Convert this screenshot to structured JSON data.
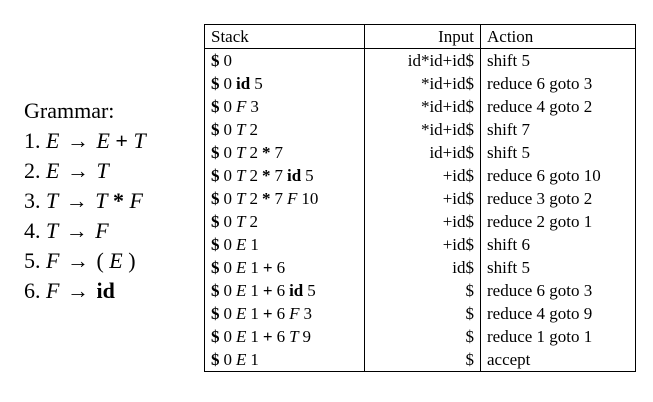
{
  "grammar": {
    "title": "Grammar:",
    "rules": [
      {
        "num": "1.",
        "parts": [
          [
            "it",
            "E"
          ],
          [
            "arrow",
            "→"
          ],
          [
            "it",
            "E"
          ],
          [
            "b",
            "+"
          ],
          [
            "it",
            "T"
          ]
        ]
      },
      {
        "num": "2.",
        "parts": [
          [
            "it",
            "E"
          ],
          [
            "arrow",
            "→"
          ],
          [
            "it",
            "T"
          ]
        ]
      },
      {
        "num": "3.",
        "parts": [
          [
            "it",
            "T"
          ],
          [
            "arrow",
            "→"
          ],
          [
            "it",
            "T"
          ],
          [
            "b",
            "*"
          ],
          [
            "it",
            "F"
          ]
        ]
      },
      {
        "num": "4.",
        "parts": [
          [
            "it",
            "T"
          ],
          [
            "arrow",
            "→"
          ],
          [
            "it",
            "F"
          ]
        ]
      },
      {
        "num": "5.",
        "parts": [
          [
            "it",
            "F"
          ],
          [
            "arrow",
            "→"
          ],
          [
            "t",
            "("
          ],
          [
            "it",
            "E"
          ],
          [
            "t",
            ")"
          ]
        ]
      },
      {
        "num": "6.",
        "parts": [
          [
            "it",
            "F"
          ],
          [
            "arrow",
            "→"
          ],
          [
            "b",
            "id"
          ]
        ]
      }
    ]
  },
  "table": {
    "headers": {
      "stack": "Stack",
      "input": "Input",
      "action": "Action"
    },
    "rows": [
      {
        "stack": [
          [
            "b",
            "$"
          ],
          [
            "t",
            "0"
          ]
        ],
        "input": "id*id+id$",
        "action": "shift 5"
      },
      {
        "stack": [
          [
            "b",
            "$"
          ],
          [
            "t",
            "0"
          ],
          [
            "b",
            "id"
          ],
          [
            "t",
            "5"
          ]
        ],
        "input": "*id+id$",
        "action": "reduce 6 goto 3"
      },
      {
        "stack": [
          [
            "b",
            "$"
          ],
          [
            "t",
            "0"
          ],
          [
            "it",
            "F"
          ],
          [
            "t",
            "3"
          ]
        ],
        "input": "*id+id$",
        "action": "reduce 4 goto 2"
      },
      {
        "stack": [
          [
            "b",
            "$"
          ],
          [
            "t",
            "0"
          ],
          [
            "it",
            "T"
          ],
          [
            "t",
            "2"
          ]
        ],
        "input": "*id+id$",
        "action": "shift 7"
      },
      {
        "stack": [
          [
            "b",
            "$"
          ],
          [
            "t",
            "0"
          ],
          [
            "it",
            "T"
          ],
          [
            "t",
            "2"
          ],
          [
            "b",
            "*"
          ],
          [
            "t",
            "7"
          ]
        ],
        "input": "id+id$",
        "action": "shift 5"
      },
      {
        "stack": [
          [
            "b",
            "$"
          ],
          [
            "t",
            "0"
          ],
          [
            "it",
            "T"
          ],
          [
            "t",
            "2"
          ],
          [
            "b",
            "*"
          ],
          [
            "t",
            "7"
          ],
          [
            "b",
            "id"
          ],
          [
            "t",
            "5"
          ]
        ],
        "input": "+id$",
        "action": "reduce 6 goto 10"
      },
      {
        "stack": [
          [
            "b",
            "$"
          ],
          [
            "t",
            "0"
          ],
          [
            "it",
            "T"
          ],
          [
            "t",
            "2"
          ],
          [
            "b",
            "*"
          ],
          [
            "t",
            "7"
          ],
          [
            "it",
            "F"
          ],
          [
            "t",
            "10"
          ]
        ],
        "input": "+id$",
        "action": "reduce 3 goto 2"
      },
      {
        "stack": [
          [
            "b",
            "$"
          ],
          [
            "t",
            "0"
          ],
          [
            "it",
            "T"
          ],
          [
            "t",
            "2"
          ]
        ],
        "input": "+id$",
        "action": "reduce 2 goto 1"
      },
      {
        "stack": [
          [
            "b",
            "$"
          ],
          [
            "t",
            "0"
          ],
          [
            "it",
            "E"
          ],
          [
            "t",
            "1"
          ]
        ],
        "input": "+id$",
        "action": "shift 6"
      },
      {
        "stack": [
          [
            "b",
            "$"
          ],
          [
            "t",
            "0"
          ],
          [
            "it",
            "E"
          ],
          [
            "t",
            "1"
          ],
          [
            "b",
            "+"
          ],
          [
            "t",
            "6"
          ]
        ],
        "input": "id$",
        "action": "shift 5"
      },
      {
        "stack": [
          [
            "b",
            "$"
          ],
          [
            "t",
            "0"
          ],
          [
            "it",
            "E"
          ],
          [
            "t",
            "1"
          ],
          [
            "b",
            "+"
          ],
          [
            "t",
            "6"
          ],
          [
            "b",
            "id"
          ],
          [
            "t",
            "5"
          ]
        ],
        "input": "$",
        "action": "reduce 6 goto 3"
      },
      {
        "stack": [
          [
            "b",
            "$"
          ],
          [
            "t",
            "0"
          ],
          [
            "it",
            "E"
          ],
          [
            "t",
            "1"
          ],
          [
            "b",
            "+"
          ],
          [
            "t",
            "6"
          ],
          [
            "it",
            "F"
          ],
          [
            "t",
            "3"
          ]
        ],
        "input": "$",
        "action": "reduce 4 goto 9"
      },
      {
        "stack": [
          [
            "b",
            "$"
          ],
          [
            "t",
            "0"
          ],
          [
            "it",
            "E"
          ],
          [
            "t",
            "1"
          ],
          [
            "b",
            "+"
          ],
          [
            "t",
            "6"
          ],
          [
            "it",
            "T"
          ],
          [
            "t",
            "9"
          ]
        ],
        "input": "$",
        "action": "reduce 1 goto 1"
      },
      {
        "stack": [
          [
            "b",
            "$"
          ],
          [
            "t",
            "0"
          ],
          [
            "it",
            "E"
          ],
          [
            "t",
            "1"
          ]
        ],
        "input": "$",
        "action": "accept"
      }
    ]
  }
}
